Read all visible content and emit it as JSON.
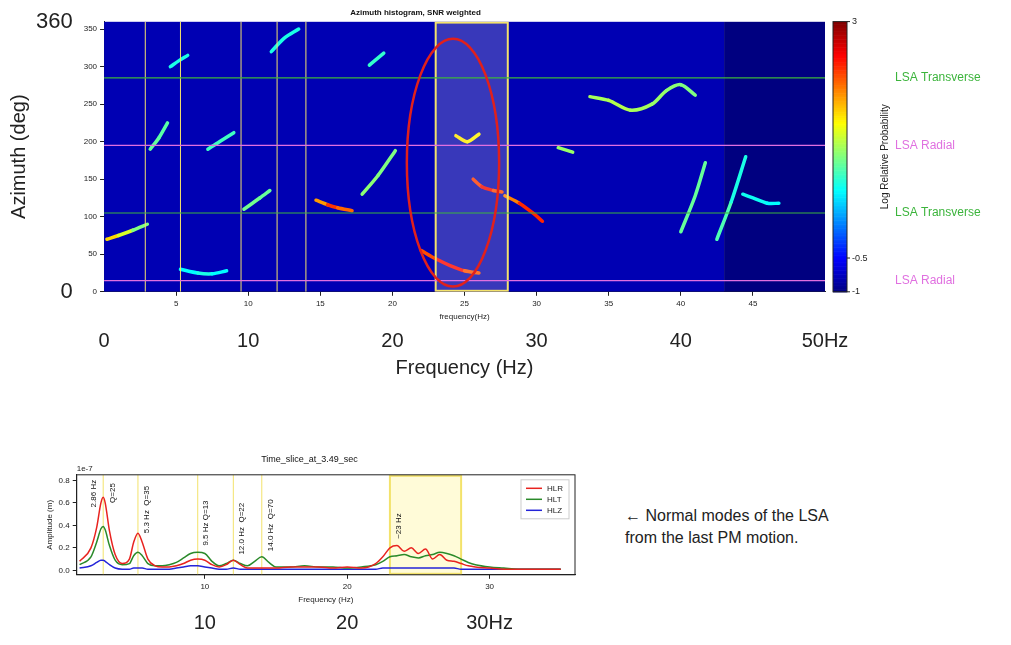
{
  "chart_data": [
    {
      "type": "heatmap",
      "title": "Azimuth histogram, SNR weighted",
      "x_label": "frequency(Hz)",
      "x_label_large": "Frequency (Hz)",
      "y_label_large": "Azimuth (deg)",
      "xlim": [
        0,
        50
      ],
      "xticks": [
        5,
        10,
        15,
        20,
        25,
        30,
        35,
        40,
        45
      ],
      "xticks_large": [
        0,
        10,
        20,
        30,
        40,
        {
          "value": 50,
          "label": "50Hz"
        }
      ],
      "ylim": [
        0,
        360
      ],
      "yticks": [
        0,
        50,
        100,
        150,
        200,
        250,
        300,
        350
      ],
      "yticks_large": [
        0,
        360
      ],
      "grid": false,
      "colorbar": {
        "label": "Log Relative Probability",
        "range": [
          -1,
          3
        ],
        "ticks": [
          -1,
          -0.5,
          3
        ]
      },
      "background": [
        {
          "x": [
            0,
            43
          ],
          "value": -0.8
        },
        {
          "x": [
            43,
            50
          ],
          "value": -1
        }
      ],
      "ridges": [
        {
          "x": [
            0.2,
            1,
            2,
            3
          ],
          "y": [
            70,
            75,
            82,
            90
          ],
          "values": [
            1.8,
            1.5,
            1.2,
            0.8
          ]
        },
        {
          "x": [
            3.2,
            3.8,
            4.4
          ],
          "y": [
            190,
            205,
            225
          ],
          "values": [
            0.8,
            1,
            0.7
          ]
        },
        {
          "x": [
            4.6,
            5.2,
            5.8
          ],
          "y": [
            300,
            308,
            315
          ],
          "values": [
            0.5,
            0.7,
            0.5
          ]
        },
        {
          "x": [
            5.3,
            6.5,
            7.5,
            8.5
          ],
          "y": [
            30,
            25,
            24,
            28
          ],
          "values": [
            0.4,
            0.6,
            0.6,
            0.4
          ]
        },
        {
          "x": [
            7.2,
            8,
            9
          ],
          "y": [
            190,
            200,
            212
          ],
          "values": [
            0.6,
            0.9,
            0.6
          ]
        },
        {
          "x": [
            9.7,
            10.8,
            11.5
          ],
          "y": [
            110,
            125,
            135
          ],
          "values": [
            0.8,
            1.1,
            0.7
          ]
        },
        {
          "x": [
            11.6,
            12.5,
            13.5
          ],
          "y": [
            320,
            338,
            350
          ],
          "values": [
            0.5,
            0.7,
            0.5
          ]
        },
        {
          "x": [
            14.7,
            15.5,
            16.2,
            17.2
          ],
          "y": [
            122,
            116,
            112,
            108
          ],
          "values": [
            1.6,
            2.2,
            2.4,
            1.8
          ]
        },
        {
          "x": [
            17.9,
            19,
            20.2
          ],
          "y": [
            130,
            155,
            188
          ],
          "values": [
            0.9,
            1.2,
            0.8
          ]
        },
        {
          "x": [
            18.4,
            19.4
          ],
          "y": [
            302,
            318
          ],
          "values": [
            0.6,
            0.8
          ]
        },
        {
          "x": [
            22,
            23,
            24,
            25,
            26
          ],
          "y": [
            55,
            44,
            35,
            28,
            25
          ],
          "values": [
            2,
            2.4,
            2.6,
            2.4,
            2
          ]
        },
        {
          "x": [
            24.4,
            25.2,
            26
          ],
          "y": [
            208,
            200,
            210
          ],
          "values": [
            1.4,
            1.8,
            1.3
          ]
        },
        {
          "x": [
            25.6,
            26.2,
            27,
            27.6
          ],
          "y": [
            150,
            140,
            135,
            133
          ],
          "values": [
            2,
            2.6,
            2.5,
            2
          ]
        },
        {
          "x": [
            27.8,
            28.8,
            29.8,
            30.4
          ],
          "y": [
            128,
            118,
            104,
            94
          ],
          "values": [
            1.8,
            2.2,
            2.5,
            2.2
          ]
        },
        {
          "x": [
            31.5,
            32.5
          ],
          "y": [
            192,
            186
          ],
          "values": [
            1.2,
            1
          ]
        },
        {
          "x": [
            33.7,
            35,
            36.5,
            38,
            39,
            40,
            41
          ],
          "y": [
            260,
            255,
            242,
            250,
            268,
            276,
            262
          ],
          "values": [
            1,
            1.3,
            1.1,
            1.2,
            1,
            1.1,
            0.9
          ]
        },
        {
          "x": [
            40,
            41,
            41.7
          ],
          "y": [
            80,
            128,
            172
          ],
          "values": [
            0.8,
            1,
            0.8
          ]
        },
        {
          "x": [
            42.5,
            43.5,
            44.5
          ],
          "y": [
            70,
            120,
            180
          ],
          "values": [
            0.9,
            0.7,
            0.5
          ]
        },
        {
          "x": [
            44.3,
            45,
            46,
            46.8
          ],
          "y": [
            130,
            125,
            118,
            118
          ],
          "values": [
            0.6,
            0.5,
            0.6,
            0.4
          ]
        }
      ],
      "reference_lines": [
        {
          "label": "LSA Transverse",
          "y": 285,
          "color": "#3cb43c"
        },
        {
          "label": "LSA Radial",
          "y": 195,
          "color": "#e070e0"
        },
        {
          "label": "LSA Transverse",
          "y": 105,
          "color": "#3cb43c"
        },
        {
          "label": "LSA Radial",
          "y": 15,
          "color": "#e070e0"
        }
      ],
      "vertical_lines": [
        2.86,
        5.3,
        9.5,
        12,
        14
      ],
      "highlight": [
        23,
        28
      ],
      "ellipse": {
        "center": [
          24.2,
          172
        ],
        "radius": [
          3.2,
          165
        ],
        "color": "#e0201c"
      }
    },
    {
      "type": "line",
      "title": "Time_slice_at_3.49_sec",
      "x_label": "Frequency (Hz)",
      "y_label": "Amplitude (m)",
      "y_scale_label": "1e-7",
      "xlim": [
        1,
        36
      ],
      "xticks": [
        10,
        20,
        30
      ],
      "xticks_large": [
        10,
        20,
        {
          "value": 30,
          "label": "30Hz"
        }
      ],
      "ylim": [
        -0.04,
        0.85
      ],
      "yticks": [
        {
          "value": 0,
          "label": "0.0"
        },
        0.2,
        0.4,
        0.6,
        0.8
      ],
      "grid": false,
      "legend": "upper right",
      "x": [
        1.2,
        2.0,
        2.4,
        2.7,
        2.86,
        3.0,
        3.3,
        3.7,
        4.2,
        4.7,
        5.0,
        5.3,
        5.6,
        6.0,
        6.5,
        7.0,
        7.5,
        8.0,
        8.5,
        9.0,
        9.5,
        10.0,
        10.5,
        11.0,
        11.5,
        12.0,
        12.5,
        13.0,
        13.5,
        14.0,
        14.5,
        15.0,
        16,
        17,
        18,
        19,
        20,
        21,
        22,
        22.5,
        23,
        23.5,
        24,
        24.5,
        25,
        25.5,
        26,
        26.5,
        27,
        27.5,
        28,
        28.5,
        29,
        30,
        31,
        32,
        33,
        35
      ],
      "series": [
        {
          "name": "HLR",
          "color": "#e8231f",
          "values": [
            0.08,
            0.2,
            0.38,
            0.6,
            0.65,
            0.6,
            0.35,
            0.14,
            0.06,
            0.1,
            0.25,
            0.33,
            0.25,
            0.1,
            0.04,
            0.03,
            0.03,
            0.04,
            0.06,
            0.09,
            0.1,
            0.09,
            0.05,
            0.03,
            0.05,
            0.09,
            0.05,
            0.02,
            0.02,
            0.02,
            0.02,
            0.02,
            0.03,
            0.03,
            0.03,
            0.02,
            0.03,
            0.02,
            0.06,
            0.12,
            0.2,
            0.22,
            0.17,
            0.2,
            0.15,
            0.19,
            0.1,
            0.14,
            0.09,
            0.08,
            0.06,
            0.04,
            0.03,
            0.02,
            0.01,
            0.01,
            0.01,
            0.01
          ]
        },
        {
          "name": "HLT",
          "color": "#2a8a2a",
          "values": [
            0.05,
            0.12,
            0.25,
            0.37,
            0.39,
            0.36,
            0.22,
            0.09,
            0.05,
            0.06,
            0.13,
            0.16,
            0.13,
            0.06,
            0.04,
            0.04,
            0.05,
            0.07,
            0.11,
            0.15,
            0.16,
            0.15,
            0.08,
            0.04,
            0.06,
            0.09,
            0.06,
            0.04,
            0.08,
            0.12,
            0.07,
            0.03,
            0.03,
            0.04,
            0.03,
            0.03,
            0.02,
            0.03,
            0.05,
            0.08,
            0.12,
            0.13,
            0.14,
            0.12,
            0.11,
            0.13,
            0.14,
            0.16,
            0.15,
            0.13,
            0.1,
            0.07,
            0.05,
            0.03,
            0.02,
            0.01,
            0.01,
            0.01
          ]
        },
        {
          "name": "HLZ",
          "color": "#2424d8",
          "values": [
            0.02,
            0.04,
            0.07,
            0.09,
            0.09,
            0.08,
            0.05,
            0.02,
            0.01,
            0.01,
            0.02,
            0.02,
            0.02,
            0.01,
            0.01,
            0.01,
            0.01,
            0.02,
            0.03,
            0.04,
            0.04,
            0.03,
            0.02,
            0.01,
            0.01,
            0.02,
            0.01,
            0.01,
            0.01,
            0.01,
            0.01,
            0.01,
            0.01,
            0.01,
            0.01,
            0.01,
            0.01,
            0.01,
            0.01,
            0.02,
            0.02,
            0.02,
            0.02,
            0.02,
            0.02,
            0.02,
            0.02,
            0.02,
            0.02,
            0.02,
            0.01,
            0.01,
            0.01,
            0.01,
            0.01,
            0.01,
            0.01,
            0.01
          ]
        }
      ],
      "annotations": [
        {
          "text": "2.86 Hz",
          "x": 2.2,
          "y": 0.56
        },
        {
          "text": "Q=25",
          "x": 3.5,
          "y": 0.6
        },
        {
          "text": "5.3 Hz  Q=35",
          "x": 5.9,
          "y": 0.33
        },
        {
          "text": "9.5 Hz Q=13",
          "x": 10.1,
          "y": 0.22
        },
        {
          "text": "12.0 Hz  Q=22",
          "x": 12.6,
          "y": 0.14
        },
        {
          "text": "14.0 Hz  Q=70",
          "x": 14.6,
          "y": 0.17
        },
        {
          "text": "~23 Hz",
          "x": 23.6,
          "y": 0.28
        }
      ],
      "vertical_lines": [
        2.86,
        5.3,
        9.5,
        12,
        14
      ],
      "highlight": [
        23,
        28
      ]
    }
  ],
  "note": [
    "← Normal modes of the LSA",
    "from the last PM motion."
  ]
}
